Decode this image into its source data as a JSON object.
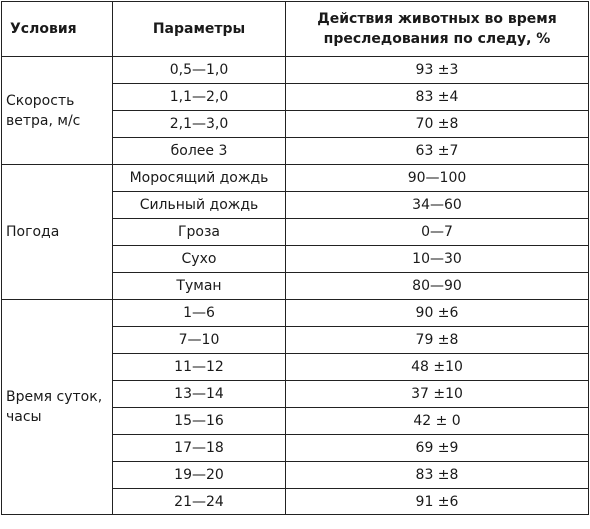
{
  "table": {
    "headers": {
      "conditions": "Условия",
      "parameters": "Параметры",
      "actions_line1": "Действия животных во время",
      "actions_line2": "преследования по следу, %"
    },
    "groups": [
      {
        "condition_line1": "Скорость",
        "condition_line2": "ветра, м/с",
        "rows": [
          {
            "param": "0,5—1,0",
            "value": "93 ±3"
          },
          {
            "param": "1,1—2,0",
            "value": "83 ±4"
          },
          {
            "param": "2,1—3,0",
            "value": "70 ±8"
          },
          {
            "param": "более 3",
            "value": "63 ±7"
          }
        ]
      },
      {
        "condition_line1": "Погода",
        "condition_line2": "",
        "rows": [
          {
            "param": "Моросящий дождь",
            "value": "90—100"
          },
          {
            "param": "Сильный дождь",
            "value": "34—60"
          },
          {
            "param": "Гроза",
            "value": "0—7"
          },
          {
            "param": "Сухо",
            "value": "10—30"
          },
          {
            "param": "Туман",
            "value": "80—90"
          }
        ]
      },
      {
        "condition_line1": "Время суток,",
        "condition_line2": "часы",
        "rows": [
          {
            "param": "1—6",
            "value": "90 ±6"
          },
          {
            "param": "7—10",
            "value": "79 ±8"
          },
          {
            "param": "11—12",
            "value": "48 ±10"
          },
          {
            "param": "13—14",
            "value": "37 ±10"
          },
          {
            "param": "15—16",
            "value": "42 ± 0"
          },
          {
            "param": "17—18",
            "value": "69 ±9"
          },
          {
            "param": "19—20",
            "value": "83 ±8"
          },
          {
            "param": "21—24",
            "value": "91 ±6"
          }
        ]
      }
    ]
  }
}
